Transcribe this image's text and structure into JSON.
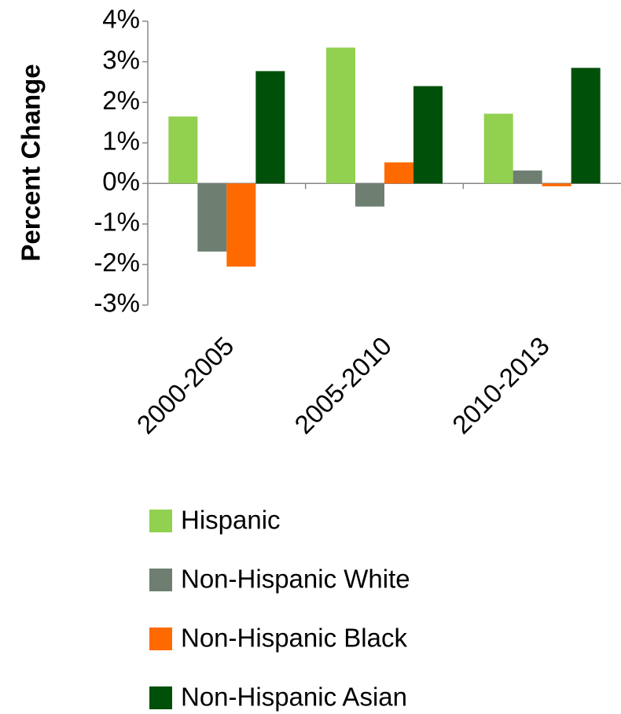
{
  "chart_data": {
    "type": "bar",
    "y_label": "Percent Change",
    "categories": [
      "2000-2005",
      "2005-2010",
      "2010-2013"
    ],
    "series": [
      {
        "name": "Hispanic",
        "color": "#92d050",
        "values": [
          1.65,
          3.35,
          1.72
        ]
      },
      {
        "name": "Non-Hispanic White",
        "color": "#6e7f72",
        "values": [
          -1.68,
          -0.57,
          0.32
        ]
      },
      {
        "name": "Non-Hispanic Black",
        "color": "#ff6a00",
        "values": [
          -2.05,
          0.52,
          -0.07
        ]
      },
      {
        "name": "Non-Hispanic Asian",
        "color": "#00500a",
        "values": [
          2.77,
          2.4,
          2.85
        ]
      }
    ],
    "ylim": [
      -3,
      4
    ],
    "yticks": [
      {
        "value": -3,
        "label": "-3%"
      },
      {
        "value": -2,
        "label": "-2%"
      },
      {
        "value": -1,
        "label": "-1%"
      },
      {
        "value": 0,
        "label": "0%"
      },
      {
        "value": 1,
        "label": "1%"
      },
      {
        "value": 2,
        "label": "2%"
      },
      {
        "value": 3,
        "label": "3%"
      },
      {
        "value": 4,
        "label": "4%"
      }
    ],
    "legend": "bottom"
  }
}
